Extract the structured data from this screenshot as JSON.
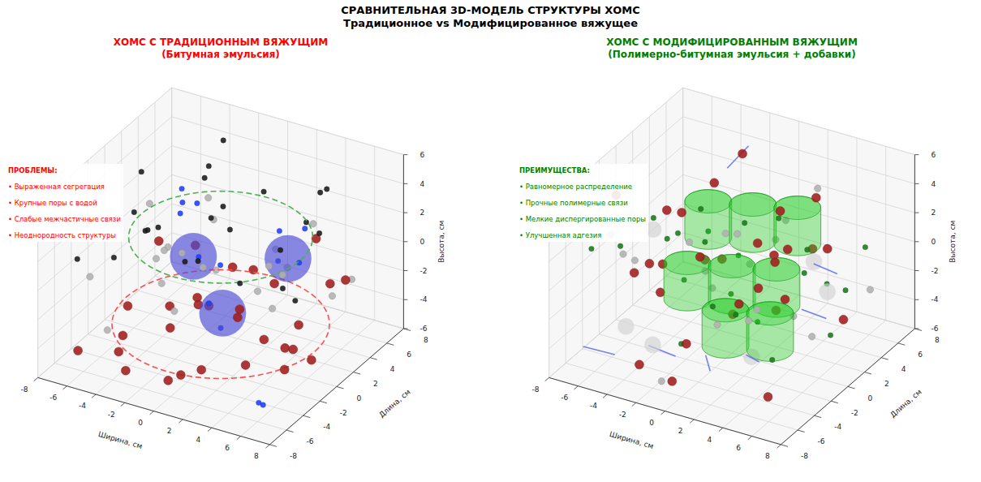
{
  "title": "СРАВНИТЕЛЬНАЯ 3D-МОДЕЛЬ СТРУКТУРЫ ХОМС",
  "subtitle": "Традиционное vs Модифицированное вяжущее",
  "chart_data": [
    {
      "type": "scatter3d",
      "title": "ХОМС С ТРАДИЦИОННЫМ ВЯЖУЩИМ",
      "subtitle": "(Битумная эмульсия)",
      "color": "#ff0000",
      "xlabel": "Ширина, см",
      "ylabel": "Длина, см",
      "zlabel": "Высота, см",
      "xlim": [
        -8,
        8
      ],
      "ylim": [
        -8,
        8
      ],
      "zlim": [
        -6,
        6
      ],
      "xticks": [
        -8,
        -6,
        -4,
        -2,
        0,
        2,
        4,
        6,
        8
      ],
      "yticks": [
        -8,
        -6,
        -4,
        -2,
        0,
        2,
        4,
        6,
        8
      ],
      "zticks": [
        -6,
        -4,
        -2,
        0,
        2,
        4,
        6
      ],
      "grid": true,
      "annotations": [
        "ПРОБЛЕМЫ:",
        "• Выраженная сегрегация",
        "• Крупные поры с водой",
        "• Слабые межчастичные связи",
        "• Неоднородность структуры"
      ],
      "series": [
        {
          "type": "ring",
          "color": "#4caf50",
          "line_style": "dashed",
          "x": [
            0
          ],
          "y": [
            0
          ],
          "z": [
            2
          ],
          "size": [
            5.5
          ]
        },
        {
          "type": "ring",
          "color": "#ff4d4d",
          "line_style": "dashed",
          "x": [
            0
          ],
          "y": [
            0
          ],
          "z": [
            -4
          ],
          "size": [
            6.5
          ]
        },
        {
          "type": "scatter",
          "color": "#a01c1c",
          "marker": "large",
          "x": [
            -6.5,
            -5.2,
            -4.1,
            -3.0,
            -1.8,
            -0.5,
            0.7,
            2.0,
            3.3,
            4.6,
            5.8,
            6.9,
            -6.0,
            -4.5,
            -2.7,
            -1.2,
            0.3,
            1.6,
            2.9,
            4.2,
            5.5,
            -5.5,
            -3.6,
            -1.9,
            0.0,
            1.9,
            3.8,
            5.9,
            -2.4,
            2.6
          ],
          "y": [
            -5.8,
            -2.1,
            4.3,
            -6.5,
            1.7,
            -3.9,
            5.2,
            -1.2,
            3.6,
            -5.0,
            0.8,
            -3.3,
            3.0,
            -4.4,
            6.1,
            -0.6,
            -6.8,
            2.4,
            -3.0,
            5.8,
            -1.9,
            6.5,
            0.2,
            -2.8,
            3.9,
            -5.6,
            1.1,
            4.7,
            -7.2,
            6.9
          ],
          "z": [
            -4.8,
            -3.2,
            -5.5,
            -2.4,
            -4.1,
            -5.7,
            -3.6,
            -1.8,
            -4.9,
            -3.0,
            -5.2,
            -2.1,
            -1.5,
            -5.0,
            -3.9,
            -2.7,
            -4.4,
            -5.8,
            -1.2,
            -2.9,
            -4.6,
            -3.4,
            -5.4,
            -1.9,
            -2.2,
            -3.8,
            -5.1,
            -1.6,
            -4.3,
            -0.8
          ]
        },
        {
          "type": "scatter",
          "color": "#b0b0b0",
          "marker": "medium",
          "x": [
            -7.0,
            -5.6,
            -4.3,
            -2.8,
            -1.4,
            0.1,
            1.5,
            3.1,
            4.5,
            6.1,
            7.2,
            -6.3,
            -3.7,
            -0.9,
            2.2,
            5.0,
            -4.9,
            -2.0,
            0.9,
            3.9,
            6.6,
            -1.7
          ],
          "y": [
            -3.5,
            1.2,
            -6.1,
            4.0,
            -2.2,
            6.4,
            -4.7,
            2.6,
            -0.4,
            5.1,
            -6.3,
            4.6,
            -1.3,
            -5.5,
            0.6,
            -2.9,
            7.0,
            2.9,
            -7.1,
            4.3,
            1.9,
            -3.8
          ],
          "z": [
            -1.0,
            2.1,
            -2.6,
            0.4,
            1.6,
            -2.0,
            2.7,
            -0.5,
            0.9,
            -1.7,
            2.3,
            -2.8,
            0.1,
            1.3,
            -1.4,
            2.9,
            -0.2,
            -2.3,
            0.7,
            1.9,
            -1.1,
            2.5
          ]
        },
        {
          "type": "scatter",
          "color": "#1a1a1a",
          "marker": "small",
          "x": [
            -6.8,
            -5.0,
            -3.4,
            -1.6,
            0.2,
            1.9,
            3.6,
            5.3,
            6.7,
            -5.8,
            -4.0,
            -2.2,
            -0.4,
            1.3,
            3.0,
            4.8,
            -6.2,
            -2.9,
            0.8,
            2.5,
            4.1,
            6.0,
            -1.0,
            -4.6
          ],
          "y": [
            2.3,
            -4.1,
            6.2,
            -1.5,
            4.8,
            -6.0,
            0.9,
            3.5,
            -2.7,
            -0.3,
            5.5,
            -5.2,
            1.8,
            -3.4,
            6.7,
            -0.9,
            -6.4,
            3.1,
            -1.1,
            5.9,
            -4.8,
            1.4,
            -7.0,
            0.5
          ],
          "z": [
            3.4,
            1.2,
            4.6,
            0.6,
            2.8,
            3.9,
            1.7,
            5.1,
            0.9,
            2.2,
            3.0,
            4.4,
            1.5,
            5.4,
            2.6,
            0.3,
            1.9,
            3.7,
            4.9,
            0.8,
            2.4,
            3.3,
            5.7,
            1.1
          ]
        },
        {
          "type": "scatter",
          "color": "#1f3fff",
          "marker": "small",
          "x": [
            -3.6,
            -2.9,
            -3.1,
            -1.0,
            -0.6,
            1.8,
            2.4,
            4.2,
            3.5,
            0.4,
            -4.3,
            5.8,
            6.5,
            1.1
          ],
          "y": [
            1.4,
            2.2,
            0.8,
            -0.9,
            1.0,
            3.9,
            2.7,
            2.1,
            4.0,
            -2.1,
            2.8,
            -5.5,
            -6.2,
            -1.9
          ],
          "z": [
            1.9,
            2.4,
            3.1,
            0.8,
            -0.6,
            1.0,
            -0.3,
            0.4,
            1.6,
            -1.4,
            2.7,
            -5.0,
            -4.6,
            -3.0
          ]
        },
        {
          "type": "sphere",
          "color": "#4b4bd6",
          "x": [
            -2.0,
            3.2,
            1.0
          ],
          "y": [
            0.2,
            2.5,
            -1.5
          ],
          "z": [
            0.0,
            0.2,
            -2.2
          ],
          "size": [
            1.4,
            1.4,
            1.4
          ]
        }
      ]
    },
    {
      "type": "scatter3d",
      "title": "ХОМС С МОДИФИЦИРОВАННЫМ ВЯЖУЩИМ",
      "subtitle": "(Полимерно-битумная эмульсия + добавки)",
      "color": "#008000",
      "xlabel": "Ширина, см",
      "ylabel": "Длина, см",
      "zlabel": "Высота, см",
      "xlim": [
        -8,
        8
      ],
      "ylim": [
        -8,
        8
      ],
      "zlim": [
        -6,
        6
      ],
      "xticks": [
        -8,
        -6,
        -4,
        -2,
        0,
        2,
        4,
        6,
        8
      ],
      "yticks": [
        -8,
        -6,
        -4,
        -2,
        0,
        2,
        4,
        6,
        8
      ],
      "zticks": [
        -6,
        -4,
        -2,
        0,
        2,
        4,
        6
      ],
      "grid": true,
      "annotations": [
        "ПРЕИМУЩЕСТВА:",
        "• Равномерное распределение",
        "• Прочные полимерные связи",
        "• Мелкие диспергированные поры",
        "• Улучшенная адгезия"
      ],
      "series": [
        {
          "type": "cylinder",
          "color": "#22cc22",
          "x": [
            -2.5,
            0.0,
            2.5,
            -2.5,
            0.0,
            2.5,
            1.0,
            3.5
          ],
          "y": [
            1.5,
            2.5,
            3.5,
            -1.0,
            0.0,
            1.0,
            -2.5,
            -1.5
          ],
          "z": [
            0.5,
            0.5,
            0.5,
            -2.5,
            -2.5,
            -2.5,
            -4.0,
            -4.0
          ],
          "height": [
            2.5,
            2.5,
            2.5,
            2.5,
            2.5,
            2.5,
            2.5,
            2.5
          ],
          "size": [
            1.4,
            1.4,
            1.4,
            1.4,
            1.4,
            1.4,
            1.4,
            1.4
          ]
        },
        {
          "type": "segment",
          "color": "#5b6cf0",
          "x": [
            [
              -6.8,
              -4.5
            ],
            [
              -2.0,
              -1.0
            ],
            [
              3.0,
              4.2
            ],
            [
              4.6,
              6.0
            ],
            [
              0.5,
              1.5
            ],
            [
              -3.5,
              -2.6
            ],
            [
              5.5,
              6.8
            ]
          ],
          "y": [
            [
              -6.0,
              -6.2
            ],
            [
              -6.5,
              -5.0
            ],
            [
              -3.5,
              -4.0
            ],
            [
              1.8,
              2.2
            ],
            [
              -4.0,
              -5.2
            ],
            [
              5.5,
              6.5
            ],
            [
              -1.2,
              -0.5
            ]
          ],
          "z": [
            [
              -4.5,
              -4.3
            ],
            [
              -2.8,
              -4.0
            ],
            [
              -3.5,
              -3.4
            ],
            [
              0.6,
              0.1
            ],
            [
              -4.0,
              -4.2
            ],
            [
              3.0,
              4.3
            ],
            [
              -0.8,
              -1.4
            ]
          ]
        },
        {
          "type": "scatter",
          "color": "#a01c1c",
          "marker": "large",
          "x": [
            -6.6,
            -4.8,
            -3.1,
            -1.5,
            0.4,
            2.1,
            3.8,
            5.5,
            6.9,
            -5.7,
            -3.9,
            -2.1,
            -0.2,
            1.6,
            3.3,
            5.0,
            -6.9,
            -4.2,
            -0.9,
            2.8,
            4.6,
            6.3,
            -2.6,
            0.9,
            -5.2,
            1.2,
            3.9,
            -1.2,
            5.8,
            -3.5
          ],
          "y": [
            -2.4,
            5.1,
            -6.3,
            2.7,
            -4.5,
            6.0,
            -0.8,
            3.8,
            -5.6,
            1.6,
            -3.1,
            4.9,
            -6.8,
            0.3,
            5.7,
            -2.0,
            3.4,
            -0.5,
            6.6,
            -4.0,
            2.1,
            -6.6,
            -1.5,
            -7.0,
            6.9,
            3.2,
            -3.6,
            0.9,
            -4.9,
            -5.0
          ],
          "z": [
            4.2,
            -3.5,
            1.8,
            -5.1,
            3.0,
            -1.2,
            5.3,
            -4.0,
            2.5,
            -2.3,
            0.6,
            4.7,
            -4.6,
            1.9,
            -0.7,
            3.6,
            -5.5,
            2.9,
            -2.8,
            0.2,
            5.0,
            -3.9,
            3.7,
            -1.6,
            0.8,
            -4.3,
            1.4,
            -0.3,
            4.4,
            -5.3
          ]
        },
        {
          "type": "scatter",
          "color": "#b0b0b0",
          "marker": "medium",
          "x": [
            -7.1,
            -5.3,
            -3.6,
            -1.9,
            -0.1,
            1.7,
            3.5,
            5.2,
            7.0,
            -6.0,
            -2.4,
            0.6,
            2.4,
            4.3,
            6.1,
            -4.4,
            -1.1,
            1.0,
            3.0,
            -3.0
          ],
          "y": [
            0.7,
            -5.3,
            3.9,
            -1.8,
            5.4,
            -3.7,
            1.3,
            -6.0,
            4.4,
            -2.6,
            6.3,
            -0.4,
            -5.9,
            2.8,
            -1.0,
            -4.1,
            -6.5,
            4.7,
            -3.2,
            2.0
          ],
          "z": [
            -2.0,
            3.3,
            -4.5,
            2.0,
            -0.9,
            4.6,
            -3.1,
            1.5,
            -1.8,
            0.4,
            -3.7,
            2.6,
            -0.4,
            5.2,
            -2.6,
            3.9,
            -5.0,
            1.1,
            -1.3,
            -2.2
          ]
        },
        {
          "type": "scatter",
          "color": "#1a7a1a",
          "marker": "small",
          "x": [
            -6.2,
            -4.6,
            -2.9,
            -1.3,
            0.5,
            2.2,
            3.9,
            5.6,
            6.8,
            -5.5,
            -3.3,
            -0.7,
            1.3,
            3.1,
            4.9,
            -6.4,
            -4.0,
            -1.8,
            0.2,
            2.6,
            4.4,
            6.2,
            -2.2,
            1.8
          ],
          "y": [
            3.0,
            -1.4,
            5.8,
            -4.2,
            2.2,
            -6.1,
            4.6,
            -0.7,
            1.8,
            -3.8,
            0.0,
            -2.5,
            6.4,
            -4.9,
            3.3,
            -5.7,
            4.1,
            -0.1,
            -6.4,
            1.1,
            -2.8,
            5.2,
            3.7,
            -1.6
          ],
          "z": [
            -1.4,
            2.7,
            -3.0,
            4.0,
            -4.8,
            0.9,
            -2.4,
            3.1,
            -0.6,
            1.7,
            -1.9,
            5.0,
            -3.3,
            0.0,
            -5.0,
            2.2,
            -0.8,
            1.2,
            -2.1,
            3.5,
            -3.8,
            0.5,
            -4.4,
            4.3
          ]
        },
        {
          "type": "sphere",
          "color": "#d3d3d3",
          "x": [
            -5.0,
            4.5,
            6.3,
            -2.0,
            2.8,
            -6.0
          ],
          "y": [
            -4.0,
            2.0,
            0.5,
            -6.0,
            -2.5,
            1.0
          ],
          "z": [
            -3.6,
            0.6,
            -0.2,
            -3.0,
            -4.2,
            0.3
          ],
          "size": [
            0.5,
            0.5,
            0.5,
            0.5,
            0.5,
            0.5
          ]
        }
      ]
    }
  ]
}
